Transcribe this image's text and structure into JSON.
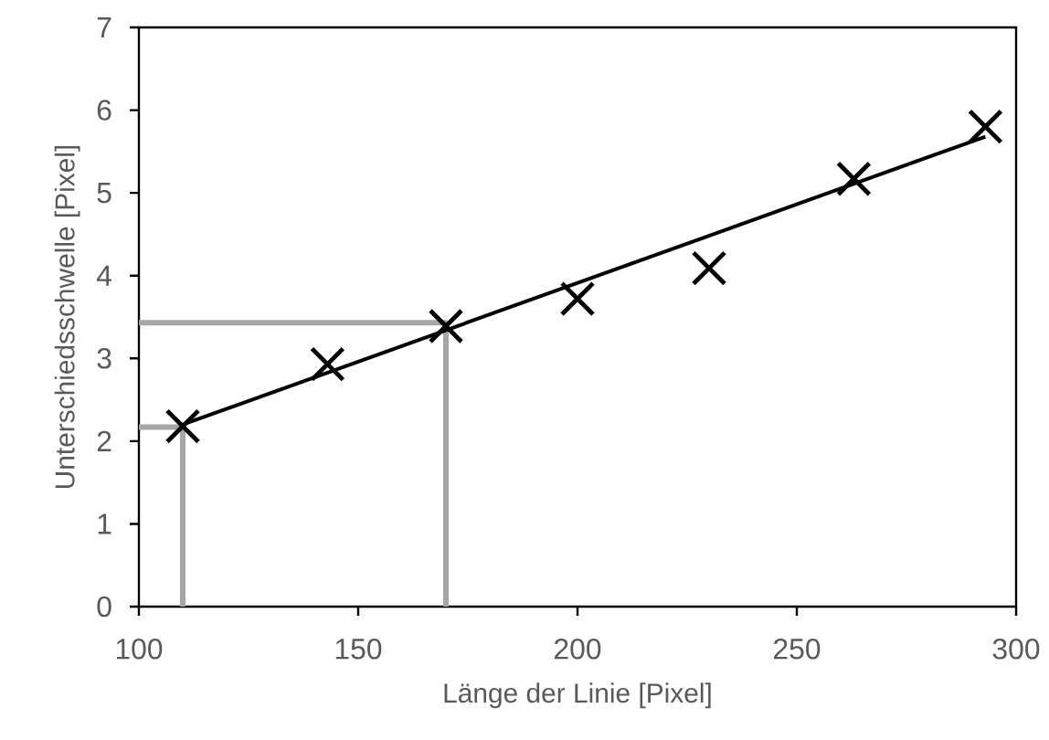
{
  "chart_data": {
    "type": "scatter",
    "xlabel": "Länge der Linie [Pixel]",
    "ylabel": "Unterschiedsschwelle [Pixel]",
    "xlim": [
      100,
      300
    ],
    "xticks": [
      100,
      150,
      200,
      250,
      300
    ],
    "ylim": [
      0,
      7
    ],
    "yticks": [
      0,
      1,
      2,
      3,
      4,
      5,
      6,
      7
    ],
    "grid": false,
    "series": [
      {
        "marker": "cross",
        "color": "#000000",
        "x": [
          110,
          143,
          170,
          200,
          230,
          263,
          293
        ],
        "values": [
          2.18,
          2.93,
          3.39,
          3.72,
          4.09,
          5.17,
          5.8
        ]
      },
      {
        "type": "line",
        "marker": "none",
        "color": "#000000",
        "x": [
          110,
          293
        ],
        "values": [
          2.2,
          5.68
        ]
      },
      {
        "type": "line",
        "marker": "none",
        "color": "#a6a6a6",
        "x": [
          100,
          170,
          170
        ],
        "values": [
          3.43,
          3.43,
          0
        ]
      },
      {
        "type": "line",
        "marker": "none",
        "color": "#a6a6a6",
        "x": [
          100,
          110,
          110
        ],
        "values": [
          2.17,
          2.17,
          0
        ]
      }
    ]
  }
}
